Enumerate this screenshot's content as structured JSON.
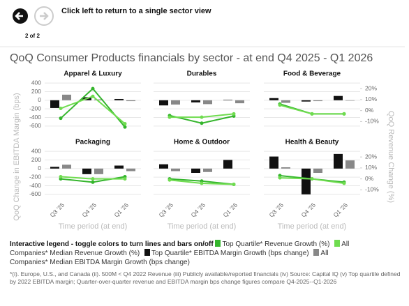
{
  "header": {
    "instruction": "Click left to return to a single sector view",
    "page": "2 of 2"
  },
  "chart_data": {
    "type": "combo",
    "title": "QoQ Consumer Products financials by sector - at end Q4 2025 - Q1 2026",
    "ylabel": "QoQ Change in EBITDA Margin (bps)",
    "y2label": "QoQ Revenue Change (%)",
    "xlabel": "Time period (at end)",
    "categories": [
      "Q3 '25",
      "Q4 '25",
      "Q1 '26"
    ],
    "ylim": [
      -700,
      500
    ],
    "yticks": [
      400,
      200,
      0,
      -200,
      -400,
      -600
    ],
    "y2lim": [
      -18,
      29
    ],
    "y2ticks": [
      {
        "value": 20,
        "label": "20%"
      },
      {
        "value": 10,
        "label": "10%"
      },
      {
        "value": 0,
        "label": "0%"
      },
      {
        "value": -10,
        "label": "-10%"
      }
    ],
    "grid": true,
    "legend_title": "Interactive legend - toggle colors to turn lines and bars on/off",
    "series": [
      {
        "name": "Top Quartile* Revenue Growth (%)",
        "color": "#34b52c",
        "kind": "line",
        "axis": "y2"
      },
      {
        "name": "All Companies* Median Revenue Growth (%)",
        "color": "#6fdc4f",
        "kind": "line",
        "axis": "y2"
      },
      {
        "name": "Top Quartile* EBITDA Margin Growth (bps change)",
        "color": "#111111",
        "kind": "bar",
        "axis": "y"
      },
      {
        "name": "All Companies* Median EBITDA Margin Growth (bps change)",
        "color": "#888888",
        "kind": "bar",
        "axis": "y"
      }
    ],
    "panels": [
      {
        "title": "Apparel & Luxury",
        "series": [
          {
            "values": [
              -7,
              20,
              -15
            ]
          },
          {
            "values": [
              2,
              13,
              -12
            ]
          },
          {
            "values": [
              -180,
              70,
              30
            ]
          },
          {
            "values": [
              130,
              20,
              -20
            ]
          }
        ]
      },
      {
        "title": "Durables",
        "series": [
          {
            "values": [
              -4.5,
              -11.5,
              -5
            ]
          },
          {
            "values": [
              -6,
              -6,
              -3
            ]
          },
          {
            "values": [
              -120,
              -50,
              10
            ]
          },
          {
            "values": [
              -100,
              -90,
              -70
            ]
          }
        ]
      },
      {
        "title": "Food & Beverage",
        "series": [
          {
            "values": [
              6,
              -3,
              -3
            ]
          },
          {
            "values": [
              5,
              -3,
              -3
            ]
          },
          {
            "values": [
              50,
              -30,
              100
            ]
          },
          {
            "values": [
              -60,
              -20,
              -10
            ]
          }
        ]
      },
      {
        "title": "Packaging",
        "series": [
          {
            "values": [
              0,
              -3,
              2
            ]
          },
          {
            "values": [
              2,
              0,
              0
            ]
          },
          {
            "values": [
              40,
              -130,
              70
            ]
          },
          {
            "values": [
              90,
              -130,
              -60
            ]
          }
        ]
      },
      {
        "title": "Home & Outdoor",
        "series": [
          {
            "values": [
              0,
              -2,
              -5
            ]
          },
          {
            "values": [
              -1,
              -4,
              -5
            ]
          },
          {
            "values": [
              100,
              -100,
              200
            ]
          },
          {
            "values": [
              -60,
              -80,
              0
            ]
          }
        ]
      },
      {
        "title": "Health & Beauty",
        "series": [
          {
            "values": [
              3,
              0,
              -3
            ]
          },
          {
            "values": [
              1,
              0,
              -4
            ]
          },
          {
            "values": [
              280,
              -600,
              340
            ]
          },
          {
            "values": [
              30,
              -100,
              190
            ]
          }
        ]
      }
    ]
  },
  "footnote": "*(i). Europe, U.S., and Canada (ii). 500M < Q4 2022 Revenue (iii) Publicly available/reported financials (iv) Source: Capital IQ (v) Top quartile defined by 2022 EBITDA margin; Quarter-over-quarter revenue and EBITDA margin bps change figures compare Q4-2025--Q1-2026"
}
